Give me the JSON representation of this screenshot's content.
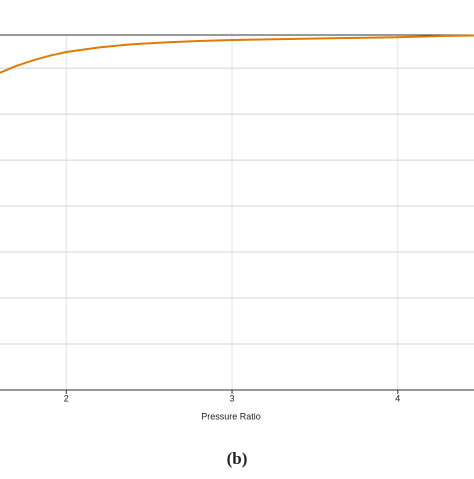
{
  "chart_data": {
    "type": "line",
    "xlabel": "Pressure Ratio",
    "caption": "(b)",
    "x": [
      1.6,
      1.7,
      1.8,
      1.9,
      2.0,
      2.2,
      2.4,
      2.6,
      2.8,
      3.0,
      3.3,
      3.6,
      4.0,
      4.3,
      4.46
    ],
    "values": [
      6.9,
      7.05,
      7.17,
      7.27,
      7.35,
      7.45,
      7.52,
      7.56,
      7.59,
      7.61,
      7.63,
      7.65,
      7.67,
      7.7,
      7.71
    ],
    "color": "#e07b00",
    "xlim": [
      1.6,
      4.46
    ],
    "xticks": [
      2,
      3,
      4
    ],
    "ylim": [
      0,
      7.72
    ],
    "yticks": [
      1,
      2,
      3,
      4,
      5,
      6,
      7
    ],
    "grid": true
  }
}
